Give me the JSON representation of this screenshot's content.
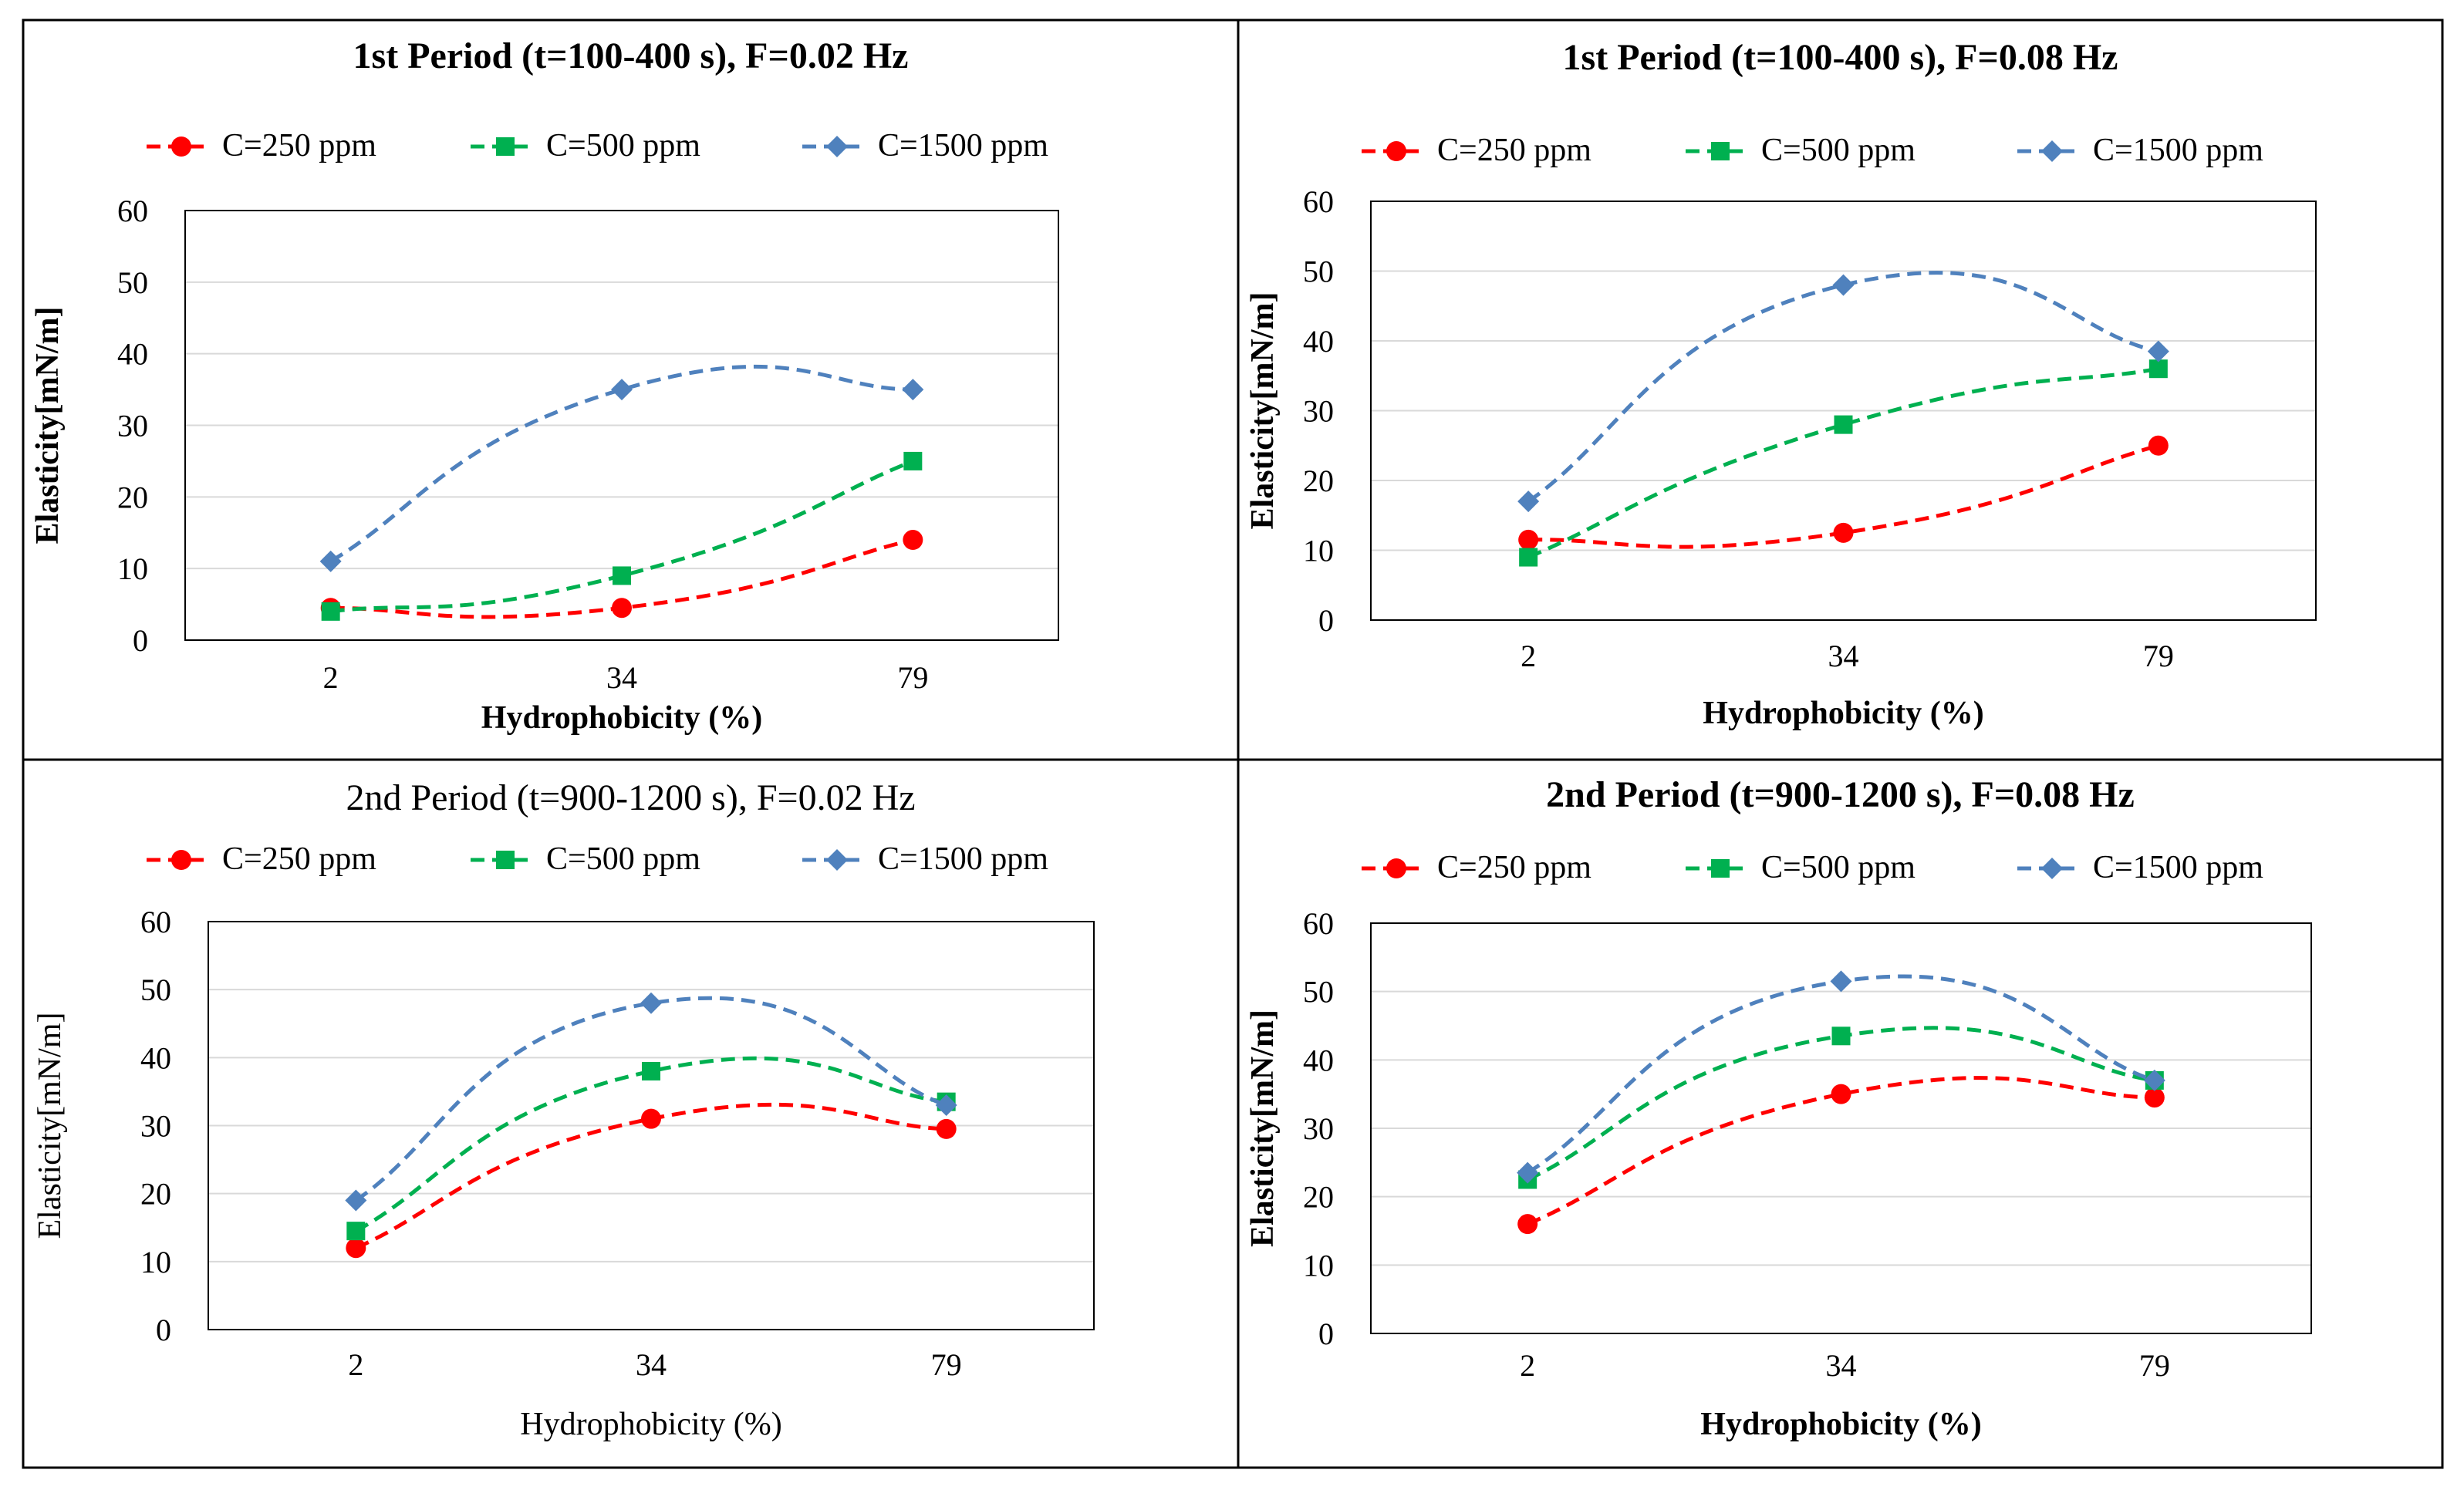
{
  "figure": {
    "series_colors": [
      "#ff0000",
      "#00b050",
      "#4f81bd"
    ]
  },
  "chart_data": [
    {
      "type": "line",
      "title": "1st Period (t=100-400 s), F=0.02 Hz",
      "title_bold": true,
      "xlabel": "Hydrophobicity (%)",
      "ylabel": "Elasticity[mN/m]",
      "categories": [
        "2",
        "34",
        "79"
      ],
      "ylim": [
        0,
        60
      ],
      "yticks": [
        "0",
        "10",
        "20",
        "30",
        "40",
        "50",
        "60"
      ],
      "grid": true,
      "legend_position": "top",
      "series": [
        {
          "name": "C=250 ppm",
          "marker": "circle",
          "color": "#ff0000",
          "values": [
            4.5,
            4.5,
            14
          ]
        },
        {
          "name": "C=500 ppm",
          "marker": "square",
          "color": "#00b050",
          "values": [
            4,
            9,
            25
          ]
        },
        {
          "name": "C=1500 ppm",
          "marker": "diamond",
          "color": "#4f81bd",
          "values": [
            11,
            35,
            35
          ]
        }
      ]
    },
    {
      "type": "line",
      "title": "1st Period (t=100-400 s), F=0.08 Hz",
      "title_bold": true,
      "xlabel": "Hydrophobicity (%)",
      "ylabel": "Elasticity[mN/m]",
      "categories": [
        "2",
        "34",
        "79"
      ],
      "ylim": [
        0,
        60
      ],
      "yticks": [
        "0",
        "10",
        "20",
        "30",
        "40",
        "50",
        "60"
      ],
      "grid": true,
      "legend_position": "top",
      "series": [
        {
          "name": "C=250 ppm",
          "marker": "circle",
          "color": "#ff0000",
          "values": [
            11.5,
            12.5,
            25
          ]
        },
        {
          "name": "C=500 ppm",
          "marker": "square",
          "color": "#00b050",
          "values": [
            9,
            28,
            36
          ]
        },
        {
          "name": "C=1500 ppm",
          "marker": "diamond",
          "color": "#4f81bd",
          "values": [
            17,
            48,
            38.5
          ]
        }
      ]
    },
    {
      "type": "line",
      "title": "2nd Period (t=900-1200 s), F=0.02 Hz",
      "title_bold": false,
      "xlabel": "Hydrophobicity (%)",
      "ylabel": "Elasticity[mN/m]",
      "categories": [
        "2",
        "34",
        "79"
      ],
      "ylim": [
        0,
        60
      ],
      "yticks": [
        "0",
        "10",
        "20",
        "30",
        "40",
        "50",
        "60"
      ],
      "grid": true,
      "legend_position": "top",
      "series": [
        {
          "name": "C=250 ppm",
          "marker": "circle",
          "color": "#ff0000",
          "values": [
            12,
            31,
            29.5
          ]
        },
        {
          "name": "C=500 ppm",
          "marker": "square",
          "color": "#00b050",
          "values": [
            14.5,
            38,
            33.5
          ]
        },
        {
          "name": "C=1500 ppm",
          "marker": "diamond",
          "color": "#4f81bd",
          "values": [
            19,
            48,
            33
          ]
        }
      ]
    },
    {
      "type": "line",
      "title": "2nd Period (t=900-1200 s), F=0.08 Hz",
      "title_bold": true,
      "xlabel": "Hydrophobicity (%)",
      "ylabel": "Elasticity[mN/m]",
      "categories": [
        "2",
        "34",
        "79"
      ],
      "ylim": [
        0,
        60
      ],
      "yticks": [
        "0",
        "10",
        "20",
        "30",
        "40",
        "50",
        "60"
      ],
      "grid": true,
      "legend_position": "top",
      "series": [
        {
          "name": "C=250 ppm",
          "marker": "circle",
          "color": "#ff0000",
          "values": [
            16,
            35,
            34.5
          ]
        },
        {
          "name": "C=500 ppm",
          "marker": "square",
          "color": "#00b050",
          "values": [
            22.5,
            43.5,
            37
          ]
        },
        {
          "name": "C=1500 ppm",
          "marker": "diamond",
          "color": "#4f81bd",
          "values": [
            23.5,
            51.5,
            37
          ]
        }
      ]
    }
  ]
}
